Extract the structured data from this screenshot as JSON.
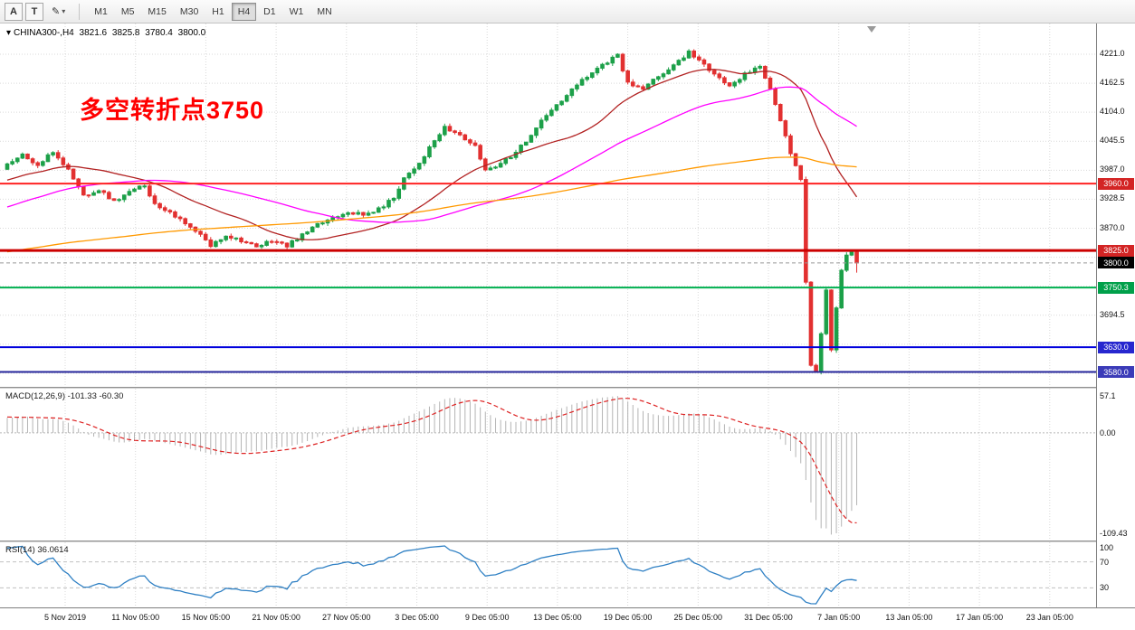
{
  "toolbar": {
    "buttons": [
      {
        "label": "A"
      },
      {
        "label": "T"
      }
    ],
    "draw_tool_glyph": "✎",
    "dropdown_caret": "▾",
    "timeframes": [
      "M1",
      "M5",
      "M15",
      "M30",
      "H1",
      "H4",
      "D1",
      "W1",
      "MN"
    ],
    "active_timeframe": "H4"
  },
  "header": {
    "symbol_caret": "▾",
    "symbol": "CHINA300-,H4",
    "open": "3821.6",
    "high": "3825.8",
    "low": "3780.4",
    "close": "3800.0"
  },
  "annotation": {
    "text": "多空转折点3750",
    "color": "#ff0000"
  },
  "time_axis": {
    "labels": [
      "5 Nov 2019",
      "11 Nov 05:00",
      "15 Nov 05:00",
      "21 Nov 05:00",
      "27 Nov 05:00",
      "3 Dec 05:00",
      "9 Dec 05:00",
      "13 Dec 05:00",
      "19 Dec 05:00",
      "25 Dec 05:00",
      "31 Dec 05:00",
      "7 Jan 05:00",
      "13 Jan 05:00",
      "17 Jan 05:00",
      "23 Jan 05:00"
    ]
  },
  "indicators": {
    "macd": {
      "label": "MACD(12,26,9)",
      "values": "-101.33 -60.30",
      "axis_labels": [
        "57.1",
        "0.00",
        "-109.43"
      ],
      "params": {
        "fast": 12,
        "slow": 26,
        "signal": 9
      },
      "histogram_color": "#b4b4b4",
      "signal_color": "#dd2222"
    },
    "rsi": {
      "label": "RSI(14)",
      "value": "36.0614",
      "axis_labels": [
        "100",
        "70",
        "30"
      ],
      "period": 14,
      "levels": [
        70,
        30
      ],
      "line_color": "#2f80c4"
    }
  },
  "chart_data": {
    "type": "candlestick",
    "symbol": "CHINA300-",
    "timeframe": "H4",
    "ohlc_current": {
      "open": 3821.6,
      "high": 3825.8,
      "low": 3780.4,
      "close": 3800.0
    },
    "price_axis": {
      "view_max": 4283,
      "view_min": 3550,
      "grid_ticks": [
        4221.0,
        4162.5,
        4104.0,
        4045.5,
        3987.0,
        3928.5,
        3870.0,
        3811.5,
        3753.0,
        3694.5,
        3636.0,
        3577.5
      ],
      "visible_tick_labels": [
        4221.0,
        4162.5,
        4104.0,
        4045.5,
        3987.0,
        3928.5,
        3870.0,
        3694.5
      ]
    },
    "levels": [
      {
        "value": 3960.0,
        "line_color": "#ff2222",
        "badge_color": "#d32424",
        "width": 2
      },
      {
        "value": 3825.0,
        "line_color": "#cc0000",
        "badge_color": "#d32424",
        "width": 3
      },
      {
        "value": 3750.3,
        "line_color": "#00b050",
        "badge_color": "#00a04a",
        "width": 2
      },
      {
        "value": 3630.0,
        "line_color": "#0000dd",
        "badge_color": "#2727cf",
        "width": 2
      },
      {
        "value": 3580.0,
        "line_color": "#26269b",
        "badge_color": "#3b3bb8",
        "width": 2
      }
    ],
    "current_price": {
      "value": 3800.0,
      "badge_color": "#000000",
      "line_color": "#999999",
      "line_style": "dashed"
    },
    "moving_averages": [
      {
        "period": 24,
        "color": "#b22222"
      },
      {
        "period": 55,
        "color": "#ff00ff"
      },
      {
        "period": 150,
        "color": "#ff9900"
      }
    ],
    "candles": {
      "count": 168,
      "seed": 11,
      "noise": 3.5,
      "bull_color": "#1ca049",
      "bear_color": "#e23030",
      "prehistory_keypoints": [
        [
          -160,
          3790
        ],
        [
          -130,
          3768
        ],
        [
          -100,
          3745
        ],
        [
          -70,
          3782
        ],
        [
          -40,
          3860
        ],
        [
          -20,
          3948
        ],
        [
          -1,
          3992
        ]
      ],
      "close_keypoints": [
        [
          0,
          4000
        ],
        [
          3,
          4018
        ],
        [
          6,
          3996
        ],
        [
          9,
          4024
        ],
        [
          12,
          3988
        ],
        [
          15,
          3936
        ],
        [
          18,
          3948
        ],
        [
          21,
          3924
        ],
        [
          24,
          3942
        ],
        [
          27,
          3958
        ],
        [
          29,
          3918
        ],
        [
          32,
          3904
        ],
        [
          35,
          3878
        ],
        [
          38,
          3856
        ],
        [
          40,
          3834
        ],
        [
          43,
          3856
        ],
        [
          46,
          3846
        ],
        [
          49,
          3830
        ],
        [
          52,
          3846
        ],
        [
          55,
          3834
        ],
        [
          58,
          3856
        ],
        [
          61,
          3876
        ],
        [
          64,
          3892
        ],
        [
          67,
          3904
        ],
        [
          70,
          3896
        ],
        [
          73,
          3908
        ],
        [
          76,
          3932
        ],
        [
          78,
          3972
        ],
        [
          81,
          4002
        ],
        [
          84,
          4046
        ],
        [
          86,
          4072
        ],
        [
          89,
          4058
        ],
        [
          92,
          4034
        ],
        [
          94,
          3988
        ],
        [
          96,
          3996
        ],
        [
          99,
          4016
        ],
        [
          102,
          4046
        ],
        [
          105,
          4086
        ],
        [
          108,
          4118
        ],
        [
          110,
          4136
        ],
        [
          112,
          4160
        ],
        [
          115,
          4186
        ],
        [
          118,
          4206
        ],
        [
          120,
          4218
        ],
        [
          122,
          4162
        ],
        [
          125,
          4150
        ],
        [
          128,
          4176
        ],
        [
          131,
          4198
        ],
        [
          134,
          4226
        ],
        [
          136,
          4210
        ],
        [
          139,
          4178
        ],
        [
          142,
          4160
        ],
        [
          145,
          4180
        ],
        [
          148,
          4198
        ],
        [
          150,
          4150
        ],
        [
          152,
          4086
        ],
        [
          154,
          4020
        ],
        [
          156,
          3968
        ],
        [
          157,
          3762
        ],
        [
          158,
          3595
        ],
        [
          159,
          3578
        ],
        [
          160,
          3660
        ],
        [
          161,
          3745
        ],
        [
          162,
          3625
        ],
        [
          163,
          3708
        ],
        [
          164,
          3785
        ],
        [
          165,
          3818
        ],
        [
          166,
          3822
        ],
        [
          167,
          3800
        ]
      ],
      "last_candle": {
        "open": 3821.6,
        "high": 3825.8,
        "low": 3780.4,
        "close": 3800.0
      }
    }
  }
}
